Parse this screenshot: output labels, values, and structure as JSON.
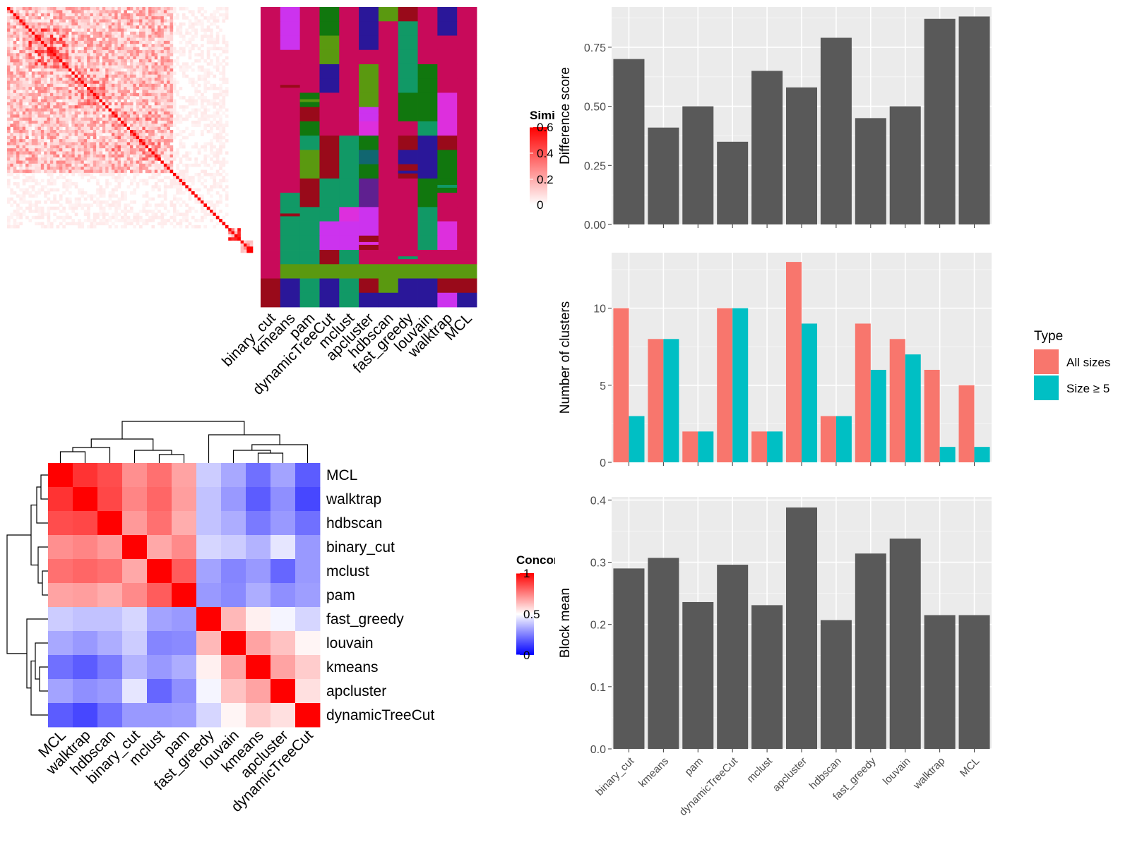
{
  "chart_data": [
    {
      "type": "heatmap",
      "id": "similarity-heatmap",
      "title": "",
      "legend_title": "Similarity",
      "legend_ticks": [
        "0.6",
        "0.4",
        "0.2",
        "0"
      ],
      "colors": {
        "low": "#ffffff",
        "high": "#ff0000"
      },
      "size": 80,
      "blocks": [
        [
          0,
          54,
          0.22
        ],
        [
          7,
          20,
          0.38
        ],
        [
          20,
          34,
          0.3
        ],
        [
          34,
          50,
          0.28
        ],
        [
          54,
          58,
          0.08
        ],
        [
          72,
          76,
          0.45
        ],
        [
          76,
          80,
          0.5
        ]
      ],
      "note_rows_columns": "80 x 80 similarity matrix, red diagonal, lighter towards lower right"
    },
    {
      "type": "heatmap",
      "id": "cluster-membership",
      "title": "",
      "columns": [
        "binary_cut",
        "kmeans",
        "pam",
        "dynamicTreeCut",
        "mclust",
        "apcluster",
        "hdbscan",
        "fast_greedy",
        "louvain",
        "walktrap",
        "MCL"
      ],
      "palette": [
        "#c80a5a",
        "#cc33ee",
        "#119966",
        "#5a9910",
        "#2a1799",
        "#11770e",
        "#990a1a",
        "#116670",
        "#5f2090",
        "#dd2fdd",
        "#14a070"
      ],
      "assignments": [
        [
          0,
          1,
          0,
          5,
          0,
          4,
          3,
          6,
          0,
          4,
          0
        ],
        [
          0,
          1,
          0,
          5,
          0,
          4,
          0,
          2,
          0,
          4,
          0
        ],
        [
          0,
          1,
          0,
          3,
          0,
          4,
          0,
          2,
          0,
          0,
          0
        ],
        [
          0,
          0,
          0,
          3,
          0,
          0,
          0,
          2,
          0,
          0,
          0
        ],
        [
          0,
          0,
          0,
          4,
          0,
          3,
          0,
          2,
          5,
          0,
          0
        ],
        [
          0,
          0,
          0,
          4,
          0,
          3,
          0,
          2,
          5,
          0,
          0
        ],
        [
          0,
          0,
          5,
          0,
          0,
          3,
          0,
          5,
          5,
          9,
          0
        ],
        [
          0,
          0,
          6,
          0,
          0,
          1,
          0,
          5,
          5,
          9,
          0
        ],
        [
          0,
          0,
          5,
          0,
          0,
          9,
          0,
          0,
          2,
          9,
          0
        ],
        [
          0,
          0,
          2,
          6,
          2,
          5,
          0,
          6,
          4,
          6,
          0
        ],
        [
          0,
          0,
          3,
          6,
          2,
          7,
          0,
          4,
          4,
          5,
          0
        ],
        [
          0,
          0,
          3,
          6,
          2,
          5,
          0,
          6,
          4,
          5,
          0
        ],
        [
          0,
          0,
          6,
          2,
          2,
          8,
          0,
          0,
          5,
          5,
          0
        ],
        [
          0,
          2,
          6,
          2,
          2,
          8,
          0,
          0,
          5,
          0,
          0
        ],
        [
          0,
          2,
          2,
          2,
          9,
          1,
          0,
          0,
          2,
          0,
          0
        ],
        [
          0,
          2,
          2,
          1,
          1,
          1,
          0,
          0,
          2,
          9,
          0
        ],
        [
          0,
          2,
          2,
          1,
          1,
          6,
          0,
          0,
          2,
          9,
          0
        ],
        [
          0,
          2,
          2,
          6,
          2,
          0,
          0,
          0,
          0,
          0,
          0
        ],
        [
          0,
          3,
          3,
          3,
          3,
          3,
          3,
          3,
          3,
          3,
          3
        ],
        [
          6,
          4,
          2,
          4,
          2,
          6,
          3,
          4,
          4,
          6,
          6
        ],
        [
          6,
          4,
          2,
          4,
          2,
          4,
          4,
          4,
          4,
          1,
          4
        ]
      ]
    },
    {
      "type": "heatmap",
      "id": "concordance-heatmap",
      "title": "",
      "legend_title": "Concordance",
      "legend_ticks": [
        "1",
        "0.5",
        "0"
      ],
      "rows": [
        "MCL",
        "walktrap",
        "hdbscan",
        "binary_cut",
        "mclust",
        "pam",
        "fast_greedy",
        "louvain",
        "kmeans",
        "apcluster",
        "dynamicTreeCut"
      ],
      "columns": [
        "MCL",
        "walktrap",
        "hdbscan",
        "binary_cut",
        "mclust",
        "pam",
        "fast_greedy",
        "louvain",
        "kmeans",
        "apcluster",
        "dynamicTreeCut"
      ],
      "values": [
        [
          1.0,
          0.9,
          0.85,
          0.72,
          0.78,
          0.68,
          0.4,
          0.33,
          0.22,
          0.32,
          0.18
        ],
        [
          0.9,
          1.0,
          0.86,
          0.74,
          0.8,
          0.69,
          0.38,
          0.3,
          0.18,
          0.28,
          0.14
        ],
        [
          0.85,
          0.86,
          1.0,
          0.7,
          0.78,
          0.66,
          0.38,
          0.34,
          0.24,
          0.3,
          0.22
        ],
        [
          0.72,
          0.74,
          0.7,
          1.0,
          0.67,
          0.73,
          0.42,
          0.4,
          0.35,
          0.45,
          0.3
        ],
        [
          0.78,
          0.8,
          0.78,
          0.67,
          1.0,
          0.82,
          0.32,
          0.26,
          0.3,
          0.2,
          0.3
        ],
        [
          0.68,
          0.69,
          0.66,
          0.73,
          0.82,
          1.0,
          0.3,
          0.27,
          0.34,
          0.28,
          0.31
        ],
        [
          0.4,
          0.38,
          0.38,
          0.42,
          0.32,
          0.3,
          1.0,
          0.64,
          0.53,
          0.48,
          0.42
        ],
        [
          0.33,
          0.3,
          0.34,
          0.4,
          0.26,
          0.27,
          0.64,
          1.0,
          0.68,
          0.62,
          0.52
        ],
        [
          0.22,
          0.18,
          0.24,
          0.35,
          0.3,
          0.34,
          0.53,
          0.68,
          1.0,
          0.68,
          0.6
        ],
        [
          0.32,
          0.28,
          0.3,
          0.45,
          0.2,
          0.28,
          0.48,
          0.62,
          0.68,
          1.0,
          0.56
        ],
        [
          0.18,
          0.14,
          0.22,
          0.3,
          0.3,
          0.31,
          0.42,
          0.52,
          0.6,
          0.56,
          1.0
        ]
      ]
    },
    {
      "type": "bar",
      "id": "difference-score",
      "title": "",
      "categories": [
        "binary_cut",
        "kmeans",
        "pam",
        "dynamicTreeCut",
        "mclust",
        "apcluster",
        "hdbscan",
        "fast_greedy",
        "louvain",
        "walktrap",
        "MCL"
      ],
      "values": [
        0.7,
        0.41,
        0.5,
        0.35,
        0.65,
        0.58,
        0.79,
        0.45,
        0.5,
        0.87,
        0.88
      ],
      "xlabel": "",
      "ylabel": "Difference score",
      "ylim": [
        0,
        0.92
      ],
      "yticks": [
        "0.00",
        "0.25",
        "0.50",
        "0.75"
      ],
      "grid": true,
      "colors": {
        "bar": "#595959",
        "panel": "#ebebeb"
      }
    },
    {
      "type": "bar",
      "id": "number-of-clusters",
      "title": "",
      "categories": [
        "binary_cut",
        "kmeans",
        "pam",
        "dynamicTreeCut",
        "mclust",
        "apcluster",
        "hdbscan",
        "fast_greedy",
        "louvain",
        "walktrap",
        "MCL"
      ],
      "series": [
        {
          "name": "All sizes",
          "values": [
            10,
            8,
            2,
            10,
            2,
            13,
            3,
            9,
            8,
            6,
            5
          ],
          "color": "#f8766d"
        },
        {
          "name": "Size ≥ 5",
          "values": [
            3,
            8,
            2,
            10,
            2,
            9,
            3,
            6,
            7,
            1,
            1
          ],
          "color": "#00bfc4"
        }
      ],
      "xlabel": "",
      "ylabel": "Number of clusters",
      "ylim": [
        0,
        13.6
      ],
      "yticks": [
        "0",
        "5",
        "10"
      ],
      "legend_title": "Type",
      "legend_position": "right",
      "grid": true
    },
    {
      "type": "bar",
      "id": "block-mean",
      "title": "",
      "categories": [
        "binary_cut",
        "kmeans",
        "pam",
        "dynamicTreeCut",
        "mclust",
        "apcluster",
        "hdbscan",
        "fast_greedy",
        "louvain",
        "walktrap",
        "MCL"
      ],
      "values": [
        0.29,
        0.307,
        0.236,
        0.296,
        0.231,
        0.388,
        0.207,
        0.314,
        0.338,
        0.215,
        0.215
      ],
      "xlabel": "",
      "ylabel": "Block mean",
      "ylim": [
        0,
        0.405
      ],
      "yticks": [
        "0.0",
        "0.1",
        "0.2",
        "0.3",
        "0.4"
      ],
      "grid": true,
      "colors": {
        "bar": "#595959",
        "panel": "#ebebeb"
      }
    }
  ]
}
